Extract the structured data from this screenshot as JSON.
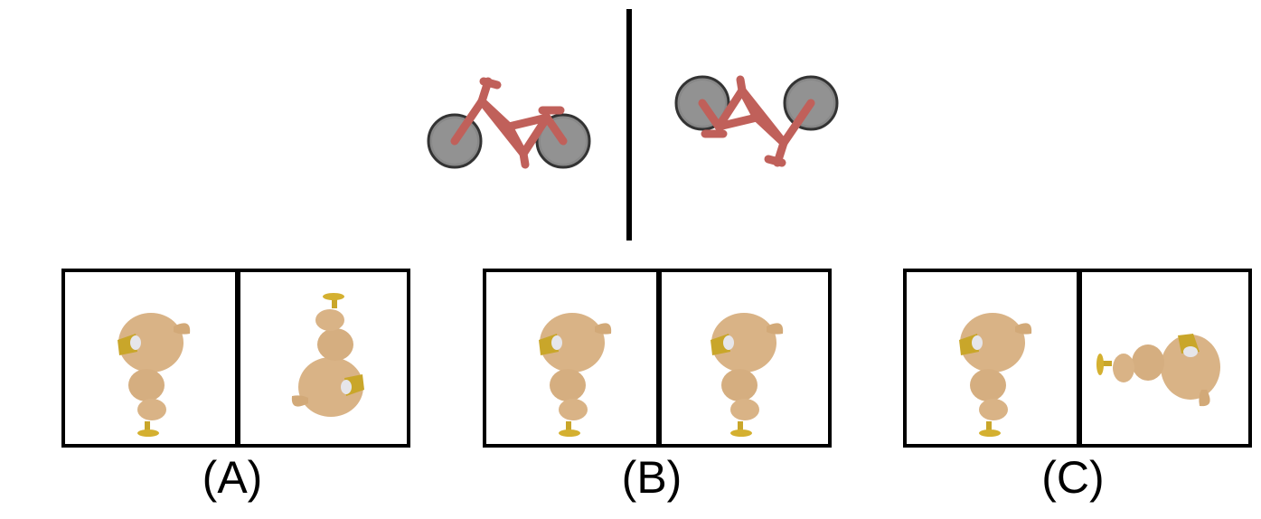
{
  "question": {
    "reference_image": "red-bicycle-icon",
    "transformed_image": "red-bicycle-rotated-icon",
    "options": [
      {
        "label": "(A)",
        "left_image": "chick-icon",
        "right_image": "chick-rotated-upside-down-icon"
      },
      {
        "label": "(B)",
        "left_image": "chick-icon",
        "right_image": "chick-icon"
      },
      {
        "label": "(C)",
        "left_image": "chick-icon",
        "right_image": "chick-rotated-sideways-icon"
      }
    ]
  },
  "colors": {
    "bicycle_frame": "#c0605a",
    "wheel": "#555555",
    "chick_body": "#d9b386",
    "beak": "#d4b030",
    "border": "#000000"
  }
}
